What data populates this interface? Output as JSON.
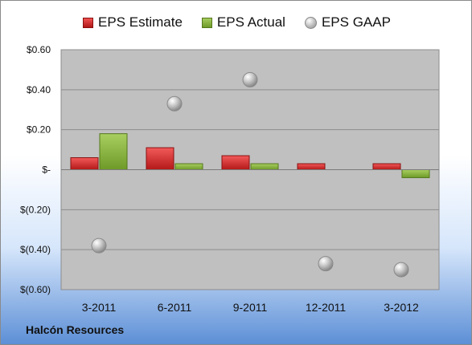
{
  "chart_data": {
    "type": "bar",
    "categories": [
      "3-2011",
      "6-2011",
      "9-2011",
      "12-2011",
      "3-2012"
    ],
    "series": [
      {
        "name": "EPS Estimate",
        "kind": "bar",
        "color": "#c82020",
        "values": [
          0.06,
          0.11,
          0.07,
          0.03,
          0.03
        ]
      },
      {
        "name": "EPS Actual",
        "kind": "bar",
        "color": "#8ab040",
        "values": [
          0.18,
          0.03,
          0.03,
          null,
          -0.04
        ]
      },
      {
        "name": "EPS GAAP",
        "kind": "scatter",
        "color": "#a0a0a0",
        "values": [
          -0.38,
          0.33,
          0.45,
          -0.47,
          -0.5
        ]
      }
    ],
    "ylim": [
      -0.6,
      0.6
    ],
    "yticks": [
      0.6,
      0.4,
      0.2,
      0,
      -0.2,
      -0.4,
      -0.6
    ],
    "ytick_labels": [
      "$0.60",
      "$0.40",
      "$0.20",
      "$-",
      "$(0.20)",
      "$(0.40)",
      "$(0.60)"
    ],
    "grid": true,
    "legend_position": "top"
  },
  "legend": {
    "estimate": "EPS Estimate",
    "actual": "EPS Actual",
    "gaap": "EPS GAAP"
  },
  "footer": {
    "company": "Halcón Resources"
  }
}
